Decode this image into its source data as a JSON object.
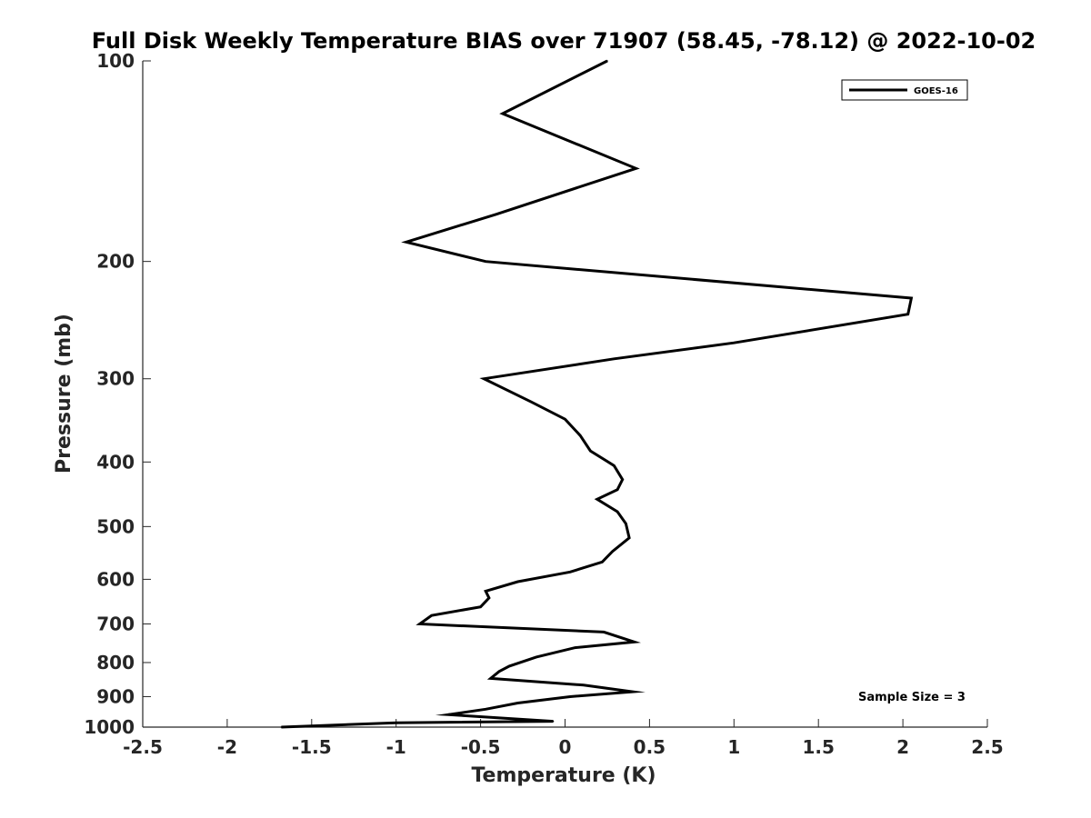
{
  "chart_data": {
    "type": "line",
    "title": "Full Disk Weekly Temperature BIAS over 71907 (58.45, -78.12) @ 2022-10-02",
    "xlabel": "Temperature (K)",
    "ylabel": "Pressure (mb)",
    "xlim": [
      -2.5,
      2.5
    ],
    "ylim": [
      100,
      1000
    ],
    "y_scale": "log",
    "y_reversed": true,
    "x_ticks": [
      -2.5,
      -2,
      -1.5,
      -1,
      -0.5,
      0,
      0.5,
      1,
      1.5,
      2,
      2.5
    ],
    "x_tick_labels": [
      "-2.5",
      "-2",
      "-1.5",
      "-1",
      "-0.5",
      "0",
      "0.5",
      "1",
      "1.5",
      "2",
      "2.5"
    ],
    "y_ticks": [
      100,
      200,
      300,
      400,
      500,
      600,
      700,
      800,
      900,
      1000
    ],
    "y_tick_labels": [
      "100",
      "200",
      "300",
      "400",
      "500",
      "600",
      "700",
      "800",
      "900",
      "1000"
    ],
    "grid": false,
    "legend_position": "top-right",
    "series": [
      {
        "name": "GOES-16",
        "color": "#000000",
        "points": [
          {
            "t": 0.25,
            "p": 100
          },
          {
            "t": -0.37,
            "p": 120
          },
          {
            "t": 0.42,
            "p": 145
          },
          {
            "t": -0.41,
            "p": 170
          },
          {
            "t": -0.94,
            "p": 187
          },
          {
            "t": -0.47,
            "p": 200
          },
          {
            "t": 2.05,
            "p": 227
          },
          {
            "t": 2.03,
            "p": 240
          },
          {
            "t": 1.0,
            "p": 265
          },
          {
            "t": 0.29,
            "p": 280
          },
          {
            "t": -0.48,
            "p": 300
          },
          {
            "t": -0.2,
            "p": 325
          },
          {
            "t": 0.0,
            "p": 345
          },
          {
            "t": 0.09,
            "p": 365
          },
          {
            "t": 0.15,
            "p": 385
          },
          {
            "t": 0.29,
            "p": 405
          },
          {
            "t": 0.34,
            "p": 425
          },
          {
            "t": 0.31,
            "p": 440
          },
          {
            "t": 0.19,
            "p": 455
          },
          {
            "t": 0.31,
            "p": 475
          },
          {
            "t": 0.36,
            "p": 495
          },
          {
            "t": 0.38,
            "p": 520
          },
          {
            "t": 0.28,
            "p": 545
          },
          {
            "t": 0.22,
            "p": 565
          },
          {
            "t": 0.03,
            "p": 585
          },
          {
            "t": -0.28,
            "p": 605
          },
          {
            "t": -0.47,
            "p": 625
          },
          {
            "t": -0.45,
            "p": 640
          },
          {
            "t": -0.5,
            "p": 660
          },
          {
            "t": -0.79,
            "p": 680
          },
          {
            "t": -0.86,
            "p": 700
          },
          {
            "t": 0.23,
            "p": 720
          },
          {
            "t": 0.41,
            "p": 745
          },
          {
            "t": 0.06,
            "p": 760
          },
          {
            "t": -0.17,
            "p": 785
          },
          {
            "t": -0.33,
            "p": 810
          },
          {
            "t": -0.39,
            "p": 825
          },
          {
            "t": -0.44,
            "p": 845
          },
          {
            "t": 0.11,
            "p": 865
          },
          {
            "t": 0.4,
            "p": 885
          },
          {
            "t": 0.03,
            "p": 900
          },
          {
            "t": -0.28,
            "p": 920
          },
          {
            "t": -0.47,
            "p": 940
          },
          {
            "t": -0.69,
            "p": 958
          },
          {
            "t": -0.07,
            "p": 980
          },
          {
            "t": -1.0,
            "p": 985
          },
          {
            "t": -1.68,
            "p": 1000
          }
        ]
      }
    ],
    "legend": {
      "entry": "GOES-16"
    },
    "annotations": [
      {
        "text": "Sample Size = 3",
        "position": "bottom-right"
      }
    ]
  }
}
